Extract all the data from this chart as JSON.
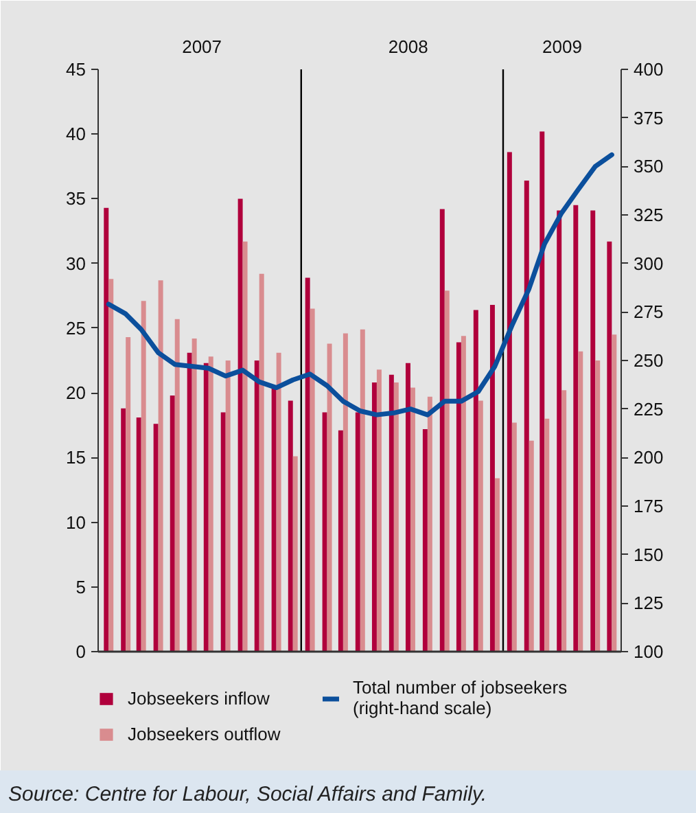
{
  "chart_data": {
    "type": "bar",
    "x": [
      "2007-01",
      "2007-02",
      "2007-03",
      "2007-04",
      "2007-05",
      "2007-06",
      "2007-07",
      "2007-08",
      "2007-09",
      "2007-10",
      "2007-11",
      "2007-12",
      "2008-01",
      "2008-02",
      "2008-03",
      "2008-04",
      "2008-05",
      "2008-06",
      "2008-07",
      "2008-08",
      "2008-09",
      "2008-10",
      "2008-11",
      "2008-12",
      "2009-01",
      "2009-02",
      "2009-03",
      "2009-04",
      "2009-05",
      "2009-06",
      "2009-07"
    ],
    "series": [
      {
        "name": "Jobseekers inflow",
        "color": "#b0003c",
        "values": [
          34.3,
          18.8,
          18.1,
          17.6,
          19.8,
          23.1,
          22.3,
          18.5,
          35.0,
          22.5,
          20.5,
          19.4,
          28.9,
          18.5,
          17.1,
          18.5,
          20.8,
          21.4,
          22.3,
          17.2,
          34.2,
          23.9,
          26.4,
          26.8,
          38.6,
          36.4,
          40.2,
          34.1,
          34.5,
          34.1,
          31.7
        ]
      },
      {
        "name": "Jobseekers outflow",
        "color": "#d98c8f",
        "values": [
          28.8,
          24.3,
          27.1,
          28.7,
          25.7,
          24.2,
          22.8,
          22.5,
          31.7,
          29.2,
          23.1,
          15.1,
          26.5,
          23.8,
          24.6,
          24.9,
          21.8,
          20.8,
          20.4,
          19.7,
          27.9,
          24.4,
          19.4,
          13.4,
          17.7,
          16.3,
          18.0,
          20.2,
          23.2,
          22.5,
          24.5
        ]
      },
      {
        "name": "Total number of jobseekers (right-hand scale)",
        "type": "line",
        "axis": "y2",
        "color": "#0b4f9c",
        "values": [
          279,
          274,
          266,
          254,
          248,
          247,
          246,
          242,
          245,
          239,
          236,
          240,
          243,
          237,
          229,
          224,
          222,
          223,
          225,
          222,
          229,
          229,
          234,
          247,
          268,
          287,
          310,
          326,
          338,
          350,
          356
        ]
      }
    ],
    "xlim": [
      "2006-12-13",
      "2009-07-18"
    ],
    "xticks": [
      {
        "value": "2007-06-19",
        "label": "2007"
      },
      {
        "value": "2008-06-27",
        "label": "2008"
      },
      {
        "value": "2009-04-02",
        "label": "2009"
      }
    ],
    "ylim": [
      0,
      45
    ],
    "yticks": [
      0,
      5,
      10,
      15,
      20,
      25,
      30,
      35,
      40,
      45
    ],
    "y2lim": [
      100,
      400
    ],
    "y2ticks": [
      100,
      125,
      150,
      175,
      200,
      225,
      250,
      275,
      300,
      325,
      350,
      375,
      400
    ],
    "ref_lines": [
      {
        "axis": "x",
        "value": "2007-12-16",
        "color": "#000000"
      },
      {
        "axis": "x",
        "value": "2008-12-16",
        "color": "#000000"
      }
    ],
    "legend": "bottom",
    "annotations": [
      "Source: Centre for Labour, Social Affairs and Family."
    ]
  }
}
